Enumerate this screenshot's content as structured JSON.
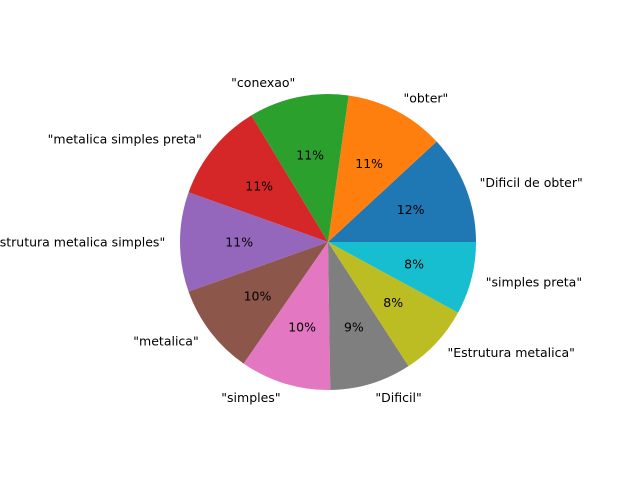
{
  "chart_data": {
    "type": "pie",
    "title": "",
    "labels": [
      "\"Dificil de obter\"",
      "\"obter\"",
      "\"conexao\"",
      "\"metalica simples preta\"",
      "\"Estrutura metalica simples\"",
      "\"metalica\"",
      "\"simples\"",
      "\"Dificil\"",
      "\"Estrutura metalica\"",
      "\"simples preta\""
    ],
    "values": [
      12,
      11,
      11,
      11,
      11,
      10,
      10,
      9,
      8,
      8
    ],
    "percent_labels": [
      "12%",
      "11%",
      "11%",
      "11%",
      "11%",
      "10%",
      "10%",
      "9%",
      "8%",
      "8%"
    ],
    "colors": [
      "#1f77b4",
      "#ff7f0e",
      "#2ca02c",
      "#d62728",
      "#9467bd",
      "#8c564b",
      "#e377c2",
      "#7f7f7f",
      "#bcbd22",
      "#17becf"
    ],
    "start_angle_deg": 0,
    "direction": "counterclockwise"
  }
}
